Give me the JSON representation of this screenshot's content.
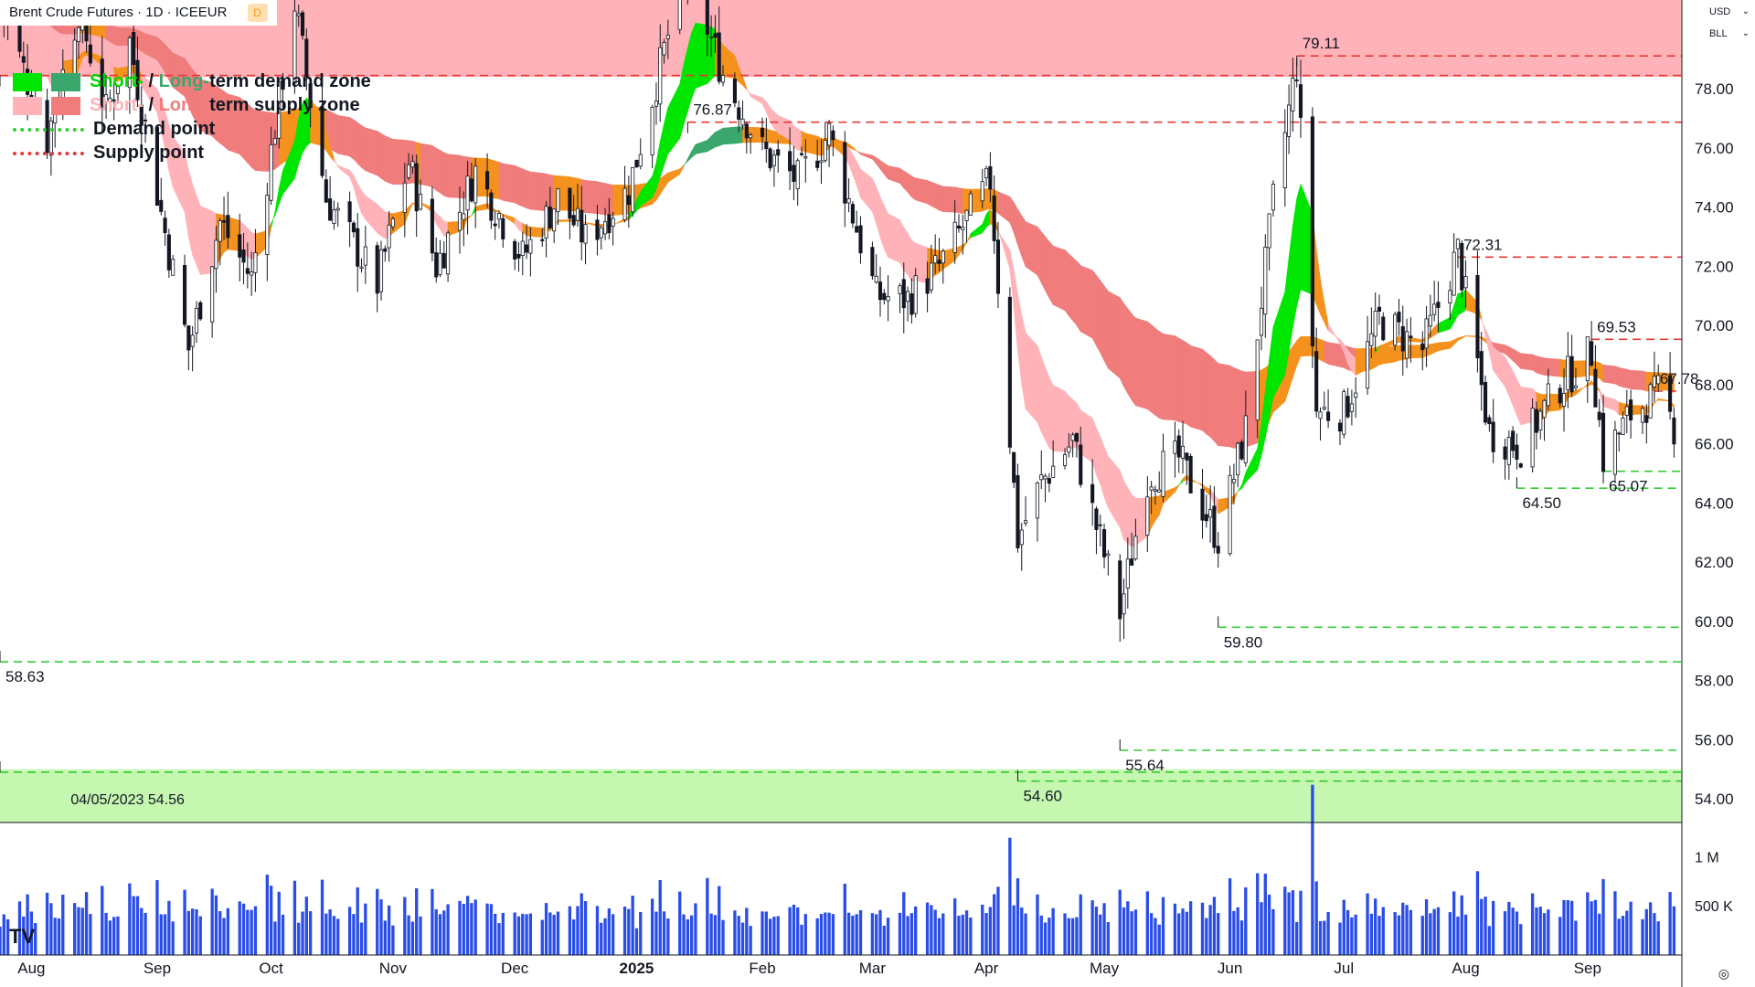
{
  "header": {
    "title": "Brent Crude Futures · 1D · ICEEUR",
    "interval_badge": "D",
    "currency": "USD",
    "unit": "BLL"
  },
  "legend": {
    "demand_short_label": "Short-",
    "demand_sep": " / ",
    "demand_long_label": "Long-",
    "demand_rest": "term demand zone",
    "supply_short_label": "Short-",
    "supply_sep": " / ",
    "supply_long_label": "Long-",
    "supply_rest": "term supply zone",
    "demand_point_label": "Demand point",
    "supply_point_label": "Supply point"
  },
  "colors": {
    "short_demand": "#00e600",
    "long_demand": "#3aa76d",
    "short_supply": "#ffb3b8",
    "long_supply": "#f07c7c",
    "demand_line": "#33cc33",
    "supply_line": "#e53935",
    "orange_band": "#f5921e",
    "volume": "#2a4de8",
    "candle": "#131722"
  },
  "chart_data": {
    "type": "candlestick",
    "symbol": "Brent Crude Futures",
    "interval": "1D",
    "ylim": [
      53.2,
      81.0
    ],
    "y_ticks": [
      54,
      56,
      58,
      60,
      62,
      64,
      66,
      68,
      70,
      72,
      74,
      76,
      78
    ],
    "y_tick_labels": [
      "54.00",
      "56.00",
      "58.00",
      "60.00",
      "62.00",
      "64.00",
      "66.00",
      "68.00",
      "70.00",
      "72.00",
      "74.00",
      "76.00",
      "78.00"
    ],
    "x_range": [
      "2024-07-24",
      "2025-09-25"
    ],
    "x_ticks": [
      {
        "date": "2024-08-01",
        "label": "Aug"
      },
      {
        "date": "2024-09-02",
        "label": "Sep"
      },
      {
        "date": "2024-10-01",
        "label": "Oct"
      },
      {
        "date": "2024-11-01",
        "label": "Nov"
      },
      {
        "date": "2024-12-02",
        "label": "Dec"
      },
      {
        "date": "2025-01-02",
        "label": "2025"
      },
      {
        "date": "2025-02-03",
        "label": "Feb"
      },
      {
        "date": "2025-03-03",
        "label": "Mar"
      },
      {
        "date": "2025-04-01",
        "label": "Apr"
      },
      {
        "date": "2025-05-01",
        "label": "May"
      },
      {
        "date": "2025-06-02",
        "label": "Jun"
      },
      {
        "date": "2025-07-01",
        "label": "Jul"
      },
      {
        "date": "2025-08-01",
        "label": "Aug"
      },
      {
        "date": "2025-09-01",
        "label": "Sep"
      }
    ],
    "price_path": [
      [
        "2024-07-24",
        81.0
      ],
      [
        "2024-08-05",
        76.3
      ],
      [
        "2024-08-13",
        80.7
      ],
      [
        "2024-08-20",
        77.2
      ],
      [
        "2024-08-26",
        79.6
      ],
      [
        "2024-09-03",
        73.8
      ],
      [
        "2024-09-10",
        69.2
      ],
      [
        "2024-09-18",
        73.5
      ],
      [
        "2024-09-26",
        71.6
      ],
      [
        "2024-10-03",
        77.6
      ],
      [
        "2024-10-07",
        80.9
      ],
      [
        "2024-10-15",
        74.3
      ],
      [
        "2024-10-28",
        71.4
      ],
      [
        "2024-11-05",
        75.5
      ],
      [
        "2024-11-12",
        72.0
      ],
      [
        "2024-11-22",
        75.2
      ],
      [
        "2024-12-04",
        72.3
      ],
      [
        "2024-12-13",
        74.3
      ],
      [
        "2024-12-20",
        72.9
      ],
      [
        "2024-12-31",
        74.6
      ],
      [
        "2025-01-10",
        79.8
      ],
      [
        "2025-01-15",
        82.0
      ],
      [
        "2025-01-24",
        78.5
      ],
      [
        "2025-02-03",
        75.9
      ],
      [
        "2025-02-12",
        74.9
      ],
      [
        "2025-02-20",
        76.5
      ],
      [
        "2025-03-04",
        71.0
      ],
      [
        "2025-03-12",
        70.9
      ],
      [
        "2025-03-20",
        72.0
      ],
      [
        "2025-04-02",
        74.9
      ],
      [
        "2025-04-09",
        62.8
      ],
      [
        "2025-04-15",
        64.7
      ],
      [
        "2025-04-23",
        66.1
      ],
      [
        "2025-05-05",
        60.3
      ],
      [
        "2025-05-12",
        64.9
      ],
      [
        "2025-05-20",
        65.5
      ],
      [
        "2025-05-30",
        62.8
      ],
      [
        "2025-06-06",
        66.5
      ],
      [
        "2025-06-13",
        74.2
      ],
      [
        "2025-06-19",
        78.8
      ],
      [
        "2025-06-24",
        67.1
      ],
      [
        "2025-07-01",
        67.1
      ],
      [
        "2025-07-10",
        70.2
      ],
      [
        "2025-07-21",
        69.2
      ],
      [
        "2025-07-30",
        72.5
      ],
      [
        "2025-08-07",
        66.4
      ],
      [
        "2025-08-15",
        65.9
      ],
      [
        "2025-08-25",
        68.0
      ],
      [
        "2025-09-02",
        69.1
      ],
      [
        "2025-09-05",
        65.5
      ],
      [
        "2025-09-12",
        67.0
      ],
      [
        "2025-09-19",
        67.7
      ],
      [
        "2025-09-23",
        66.6
      ]
    ],
    "zones": [
      {
        "kind": "supply",
        "from": 78.4,
        "to": 81.0,
        "color": "#ffb3b8"
      },
      {
        "kind": "demand",
        "from": 53.2,
        "to": 55.0,
        "color": "#c5f7b1"
      }
    ],
    "levels": [
      {
        "kind": "supply",
        "value": 79.11,
        "label": "79.11",
        "from": "2025-06-19"
      },
      {
        "kind": "supply",
        "value": 78.45,
        "label": "",
        "from": "2024-07-24"
      },
      {
        "kind": "supply",
        "value": 76.87,
        "label": "76.87",
        "from": "2025-01-15"
      },
      {
        "kind": "supply",
        "value": 72.31,
        "label": "72.31",
        "from": "2025-07-30"
      },
      {
        "kind": "supply",
        "value": 69.53,
        "label": "69.53",
        "from": "2025-09-02"
      },
      {
        "kind": "supply",
        "value": 67.78,
        "label": "67.78",
        "from": "2025-09-18"
      },
      {
        "kind": "demand",
        "value": 65.07,
        "label": "65.07",
        "from": "2025-09-05"
      },
      {
        "kind": "demand",
        "value": 64.5,
        "label": "64.50",
        "from": "2025-08-14"
      },
      {
        "kind": "demand",
        "value": 59.8,
        "label": "59.80",
        "from": "2025-05-30"
      },
      {
        "kind": "demand",
        "value": 58.63,
        "label": "58.63",
        "from": "2024-07-24"
      },
      {
        "kind": "demand",
        "value": 55.64,
        "label": "55.64",
        "from": "2025-05-05"
      },
      {
        "kind": "demand",
        "value": 54.9,
        "label": "",
        "from": "2024-07-24"
      },
      {
        "kind": "demand",
        "value": 54.6,
        "label": "54.60",
        "from": "2025-04-09"
      }
    ],
    "annotations": [
      {
        "text": "04/05/2023 54.56",
        "date": "2024-08-11",
        "value": 54.0
      }
    ],
    "volume_axis": {
      "ticks": [
        {
          "value": 1000000,
          "label": "1 M"
        },
        {
          "value": 500000,
          "label": "500 K"
        }
      ],
      "max": 1300000
    },
    "bands": {
      "short_term": "ribbon (green = demand, pink = supply, orange = neutral)",
      "long_term": "ribbon (green = demand, red = supply, orange = neutral)"
    }
  },
  "footer": {
    "logo": "TV",
    "settings_icon": "gear-icon"
  }
}
